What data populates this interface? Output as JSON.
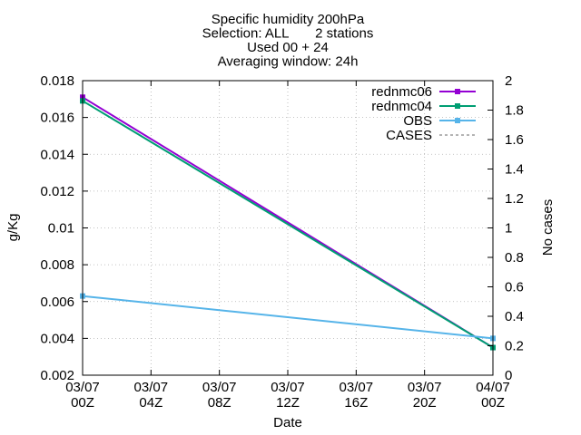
{
  "chart_data": {
    "type": "line",
    "title_lines": [
      "Specific humidity 200hPa",
      "Selection: ALL       2 stations",
      "Used 00 + 24",
      "Averaging window: 24h"
    ],
    "xlabel": "Date",
    "ylabel": "g/Kg",
    "y2label": "No cases",
    "xlim": [
      0,
      24
    ],
    "ylim": [
      0.002,
      0.018
    ],
    "y2lim": [
      0,
      2
    ],
    "x_ticks": [
      {
        "x": 0,
        "line1": "03/07",
        "line2": "00Z"
      },
      {
        "x": 4,
        "line1": "03/07",
        "line2": "04Z"
      },
      {
        "x": 8,
        "line1": "03/07",
        "line2": "08Z"
      },
      {
        "x": 12,
        "line1": "03/07",
        "line2": "12Z"
      },
      {
        "x": 16,
        "line1": "03/07",
        "line2": "16Z"
      },
      {
        "x": 20,
        "line1": "03/07",
        "line2": "20Z"
      },
      {
        "x": 24,
        "line1": "04/07",
        "line2": "00Z"
      }
    ],
    "y_ticks": [
      "0.002",
      "0.004",
      "0.006",
      "0.008",
      "0.01",
      "0.012",
      "0.014",
      "0.016",
      "0.018"
    ],
    "y2_ticks": [
      "0",
      "0.2",
      "0.4",
      "0.6",
      "0.8",
      "1",
      "1.2",
      "1.4",
      "1.6",
      "1.8",
      "2"
    ],
    "grid": true,
    "legend_position": "top-right",
    "series": [
      {
        "name": "rednmc06",
        "color": "#9400d3",
        "marker": "square",
        "dashed": false,
        "x": [
          0,
          24
        ],
        "values": [
          0.0171,
          0.0035
        ]
      },
      {
        "name": "rednmc04",
        "color": "#009e73",
        "marker": "square",
        "dashed": false,
        "x": [
          0,
          24
        ],
        "values": [
          0.0169,
          0.0035
        ]
      },
      {
        "name": "OBS",
        "color": "#56b4e9",
        "marker": "square",
        "dashed": false,
        "x": [
          0,
          24
        ],
        "values": [
          0.0063,
          0.004
        ]
      },
      {
        "name": "CASES",
        "color": "#888888",
        "marker": "none",
        "dashed": true,
        "x": [],
        "values": []
      }
    ]
  }
}
